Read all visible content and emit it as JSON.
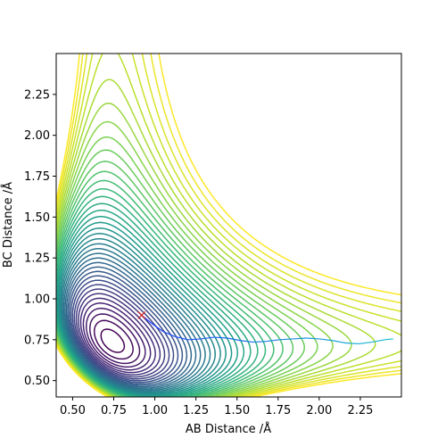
{
  "chart_data": {
    "type": "contour",
    "xlabel": "AB Distance /Å",
    "ylabel": "BC Distance /Å",
    "xlim": [
      0.4,
      2.5
    ],
    "ylim": [
      0.4,
      2.5
    ],
    "x_ticks": [
      "0.50",
      "0.75",
      "1.00",
      "1.25",
      "1.50",
      "1.75",
      "2.00",
      "2.25"
    ],
    "y_ticks": [
      "0.50",
      "0.75",
      "1.00",
      "1.25",
      "1.50",
      "1.75",
      "2.00",
      "2.25"
    ],
    "x_tick_values": [
      0.5,
      0.75,
      1.0,
      1.25,
      1.5,
      1.75,
      2.0,
      2.25
    ],
    "y_tick_values": [
      0.5,
      0.75,
      1.0,
      1.25,
      1.5,
      1.75,
      2.0,
      2.25
    ],
    "colormap": "viridis",
    "contour_levels": 40,
    "marker": {
      "x": 0.92,
      "y": 0.9,
      "symbol": "x",
      "color": "#d62728"
    },
    "trajectory": {
      "color_start": "#1f3fff",
      "color_end": "#17becf",
      "points": [
        [
          0.92,
          0.9
        ],
        [
          0.98,
          0.85
        ],
        [
          1.05,
          0.8
        ],
        [
          1.12,
          0.77
        ],
        [
          1.2,
          0.75
        ],
        [
          1.28,
          0.755
        ],
        [
          1.36,
          0.765
        ],
        [
          1.44,
          0.76
        ],
        [
          1.52,
          0.745
        ],
        [
          1.6,
          0.735
        ],
        [
          1.68,
          0.74
        ],
        [
          1.76,
          0.75
        ],
        [
          1.84,
          0.755
        ],
        [
          1.92,
          0.76
        ],
        [
          2.0,
          0.755
        ],
        [
          2.08,
          0.745
        ],
        [
          2.16,
          0.73
        ],
        [
          2.24,
          0.725
        ],
        [
          2.32,
          0.735
        ],
        [
          2.4,
          0.75
        ],
        [
          2.45,
          0.755
        ]
      ]
    }
  }
}
